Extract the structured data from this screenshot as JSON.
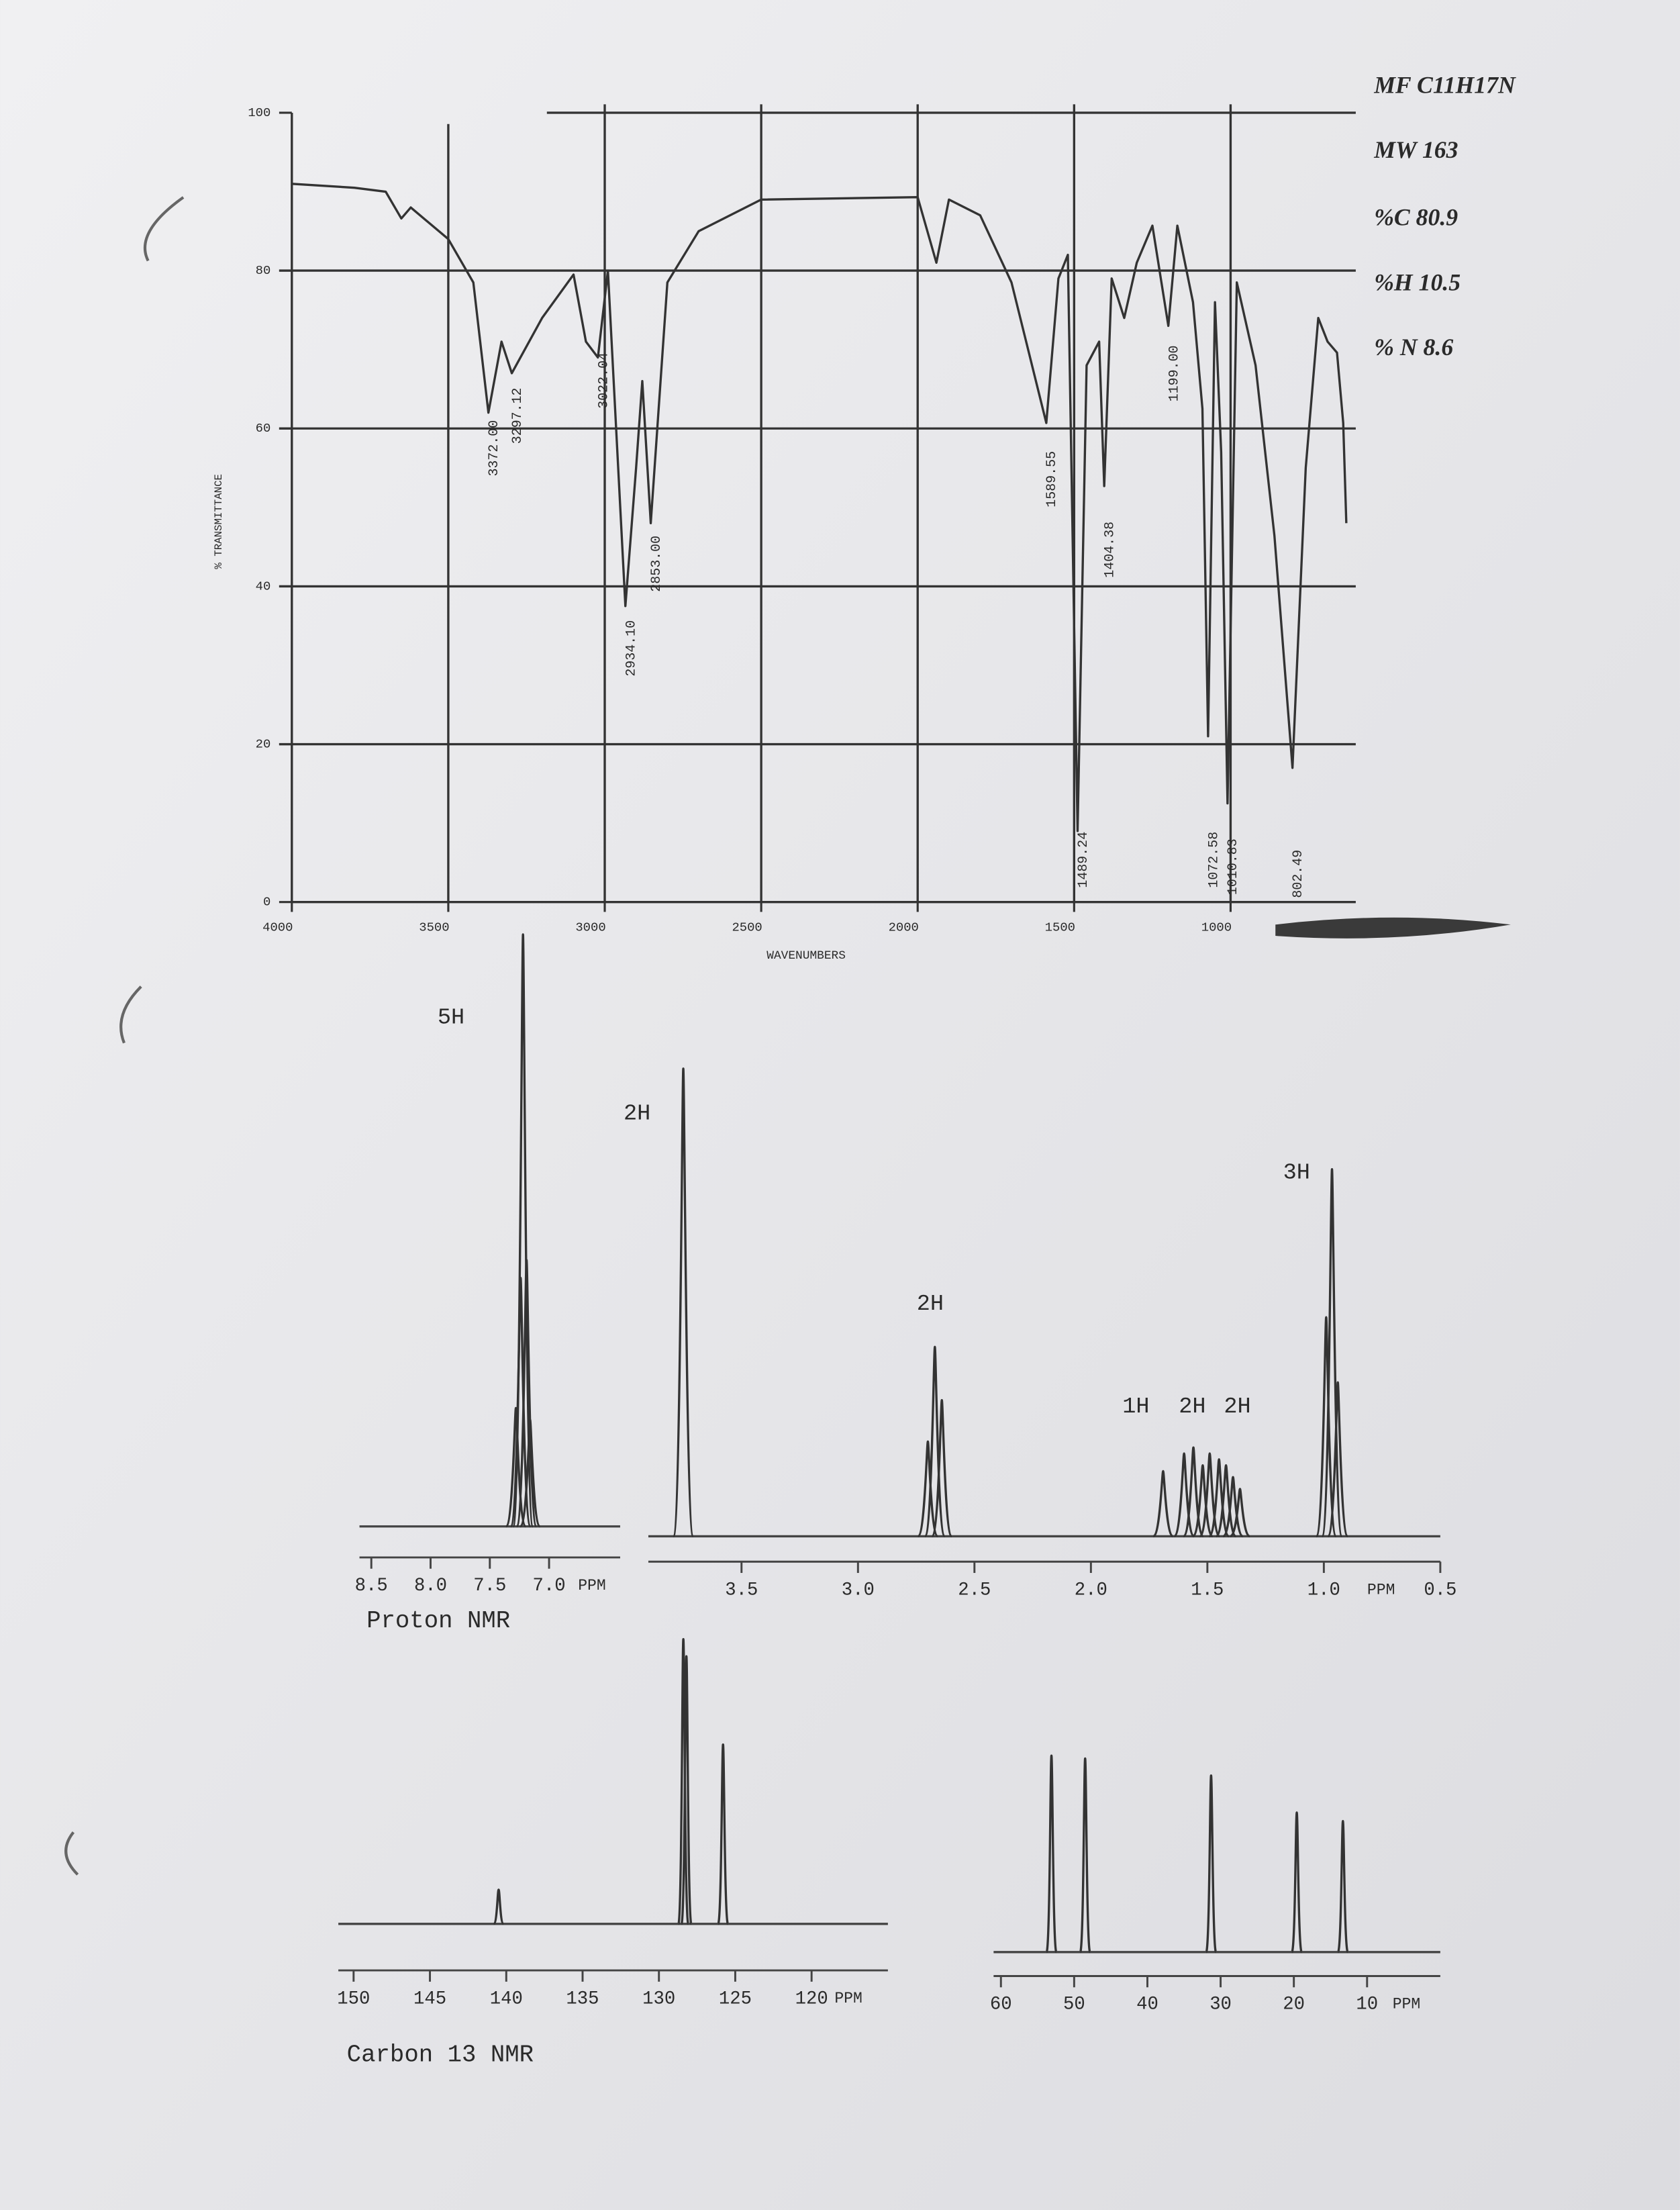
{
  "chart_data": [
    {
      "type": "line",
      "xlabel": "WAVENUMBERS",
      "ylabel": "% TRANSMITTANCE",
      "x": [
        4000,
        3800,
        3700,
        3650,
        3620,
        3500,
        3420,
        3372,
        3330,
        3297,
        3200,
        3100,
        3060,
        3022,
        2990,
        2934,
        2900,
        2880,
        2853,
        2800,
        2700,
        2500,
        2000,
        1940,
        1900,
        1800,
        1700,
        1589,
        1550,
        1520,
        1489,
        1460,
        1420,
        1404,
        1380,
        1340,
        1300,
        1250,
        1199,
        1170,
        1120,
        1090,
        1072,
        1050,
        1030,
        1010,
        980,
        920,
        860,
        802,
        760,
        720,
        690,
        660,
        640,
        630
      ],
      "values": [
        91,
        90.5,
        90,
        86.6,
        88,
        84,
        78.5,
        62,
        71,
        67,
        74,
        79.5,
        71,
        69,
        80,
        37.5,
        55,
        66,
        48,
        78.5,
        85,
        89,
        89.3,
        81,
        89,
        87,
        78.5,
        60.7,
        79,
        82,
        9,
        68,
        71,
        52.7,
        79,
        74,
        81,
        85.7,
        73,
        85.7,
        76,
        62.5,
        21,
        76,
        57,
        12.5,
        78.5,
        68,
        46.4,
        17,
        55,
        74,
        71,
        69.6,
        60.7,
        48
      ],
      "xlim": [
        4000,
        600
      ],
      "ylim": [
        0,
        100
      ],
      "xticks": [
        4000,
        3500,
        3000,
        2500,
        2000,
        1500,
        1000
      ],
      "yticks": [
        0,
        20,
        40,
        60,
        80,
        100
      ],
      "grid": true,
      "color": "#333333",
      "annotations": [
        "3372.00",
        "3297.12",
        "3022.04",
        "2934.10",
        "2853.00",
        "1589.55",
        "1404.38",
        "1199.00",
        "1489.24",
        "1072.58",
        "1010.83",
        "802.49"
      ],
      "info": [
        "MF C11H17N",
        "MW 163",
        "%C 80.9",
        "%H 10.5",
        "% N 8.6"
      ]
    },
    {
      "type": "spectrum",
      "title": "Proton NMR",
      "xlabel": "PPM",
      "ylim": [
        0,
        100
      ],
      "color": "#333333",
      "panels": [
        {
          "xlim": [
            8.6,
            6.4
          ],
          "xticks": [
            8.5,
            {
              "value": 8,
              "label": "8.0"
            },
            7.5,
            {
              "value": 7,
              "label": "7.0"
            }
          ],
          "x": [
            7.28,
            7.24,
            7.22,
            7.19,
            7.16
          ],
          "values": [
            20,
            42,
            100,
            45,
            18
          ]
        },
        {
          "xlim": [
            3.9,
            0.5
          ],
          "xticks": [
            3.5,
            {
              "value": 3,
              "label": "3.0"
            },
            2.5,
            {
              "value": 2,
              "label": "2.0"
            },
            1.5,
            {
              "value": 1,
              "label": "1.0"
            },
            0.5
          ],
          "x": [
            3.75,
            2.7,
            2.67,
            2.64,
            1.69,
            1.6,
            1.56,
            1.52,
            1.49,
            1.45,
            1.42,
            1.39,
            1.36,
            0.99,
            0.965,
            0.94
          ],
          "values": [
            79,
            16,
            32,
            23,
            11,
            14,
            15,
            12,
            14,
            13,
            12,
            10,
            8,
            37,
            62,
            26
          ]
        }
      ],
      "annotations": [
        "5H",
        "2H",
        "2H",
        "1H",
        "2H",
        "2H",
        "3H"
      ]
    },
    {
      "type": "spectrum",
      "title": "Carbon 13 NMR",
      "xlabel": "PPM",
      "ylim": [
        0,
        100
      ],
      "color": "#333333",
      "panels": [
        {
          "xlim": [
            151,
            115
          ],
          "xticks": [
            150,
            145,
            140,
            135,
            130,
            125,
            120
          ],
          "x": [
            140.5,
            128.4,
            128.2,
            125.8
          ],
          "values": [
            12,
            100,
            94,
            63
          ]
        },
        {
          "xlim": [
            61,
            0
          ],
          "xticks": [
            60,
            50,
            40,
            30,
            20,
            10
          ],
          "x": [
            53.1,
            48.5,
            31.3,
            19.6,
            13.3
          ],
          "values": [
            69,
            68,
            62,
            49,
            46
          ]
        }
      ]
    }
  ]
}
